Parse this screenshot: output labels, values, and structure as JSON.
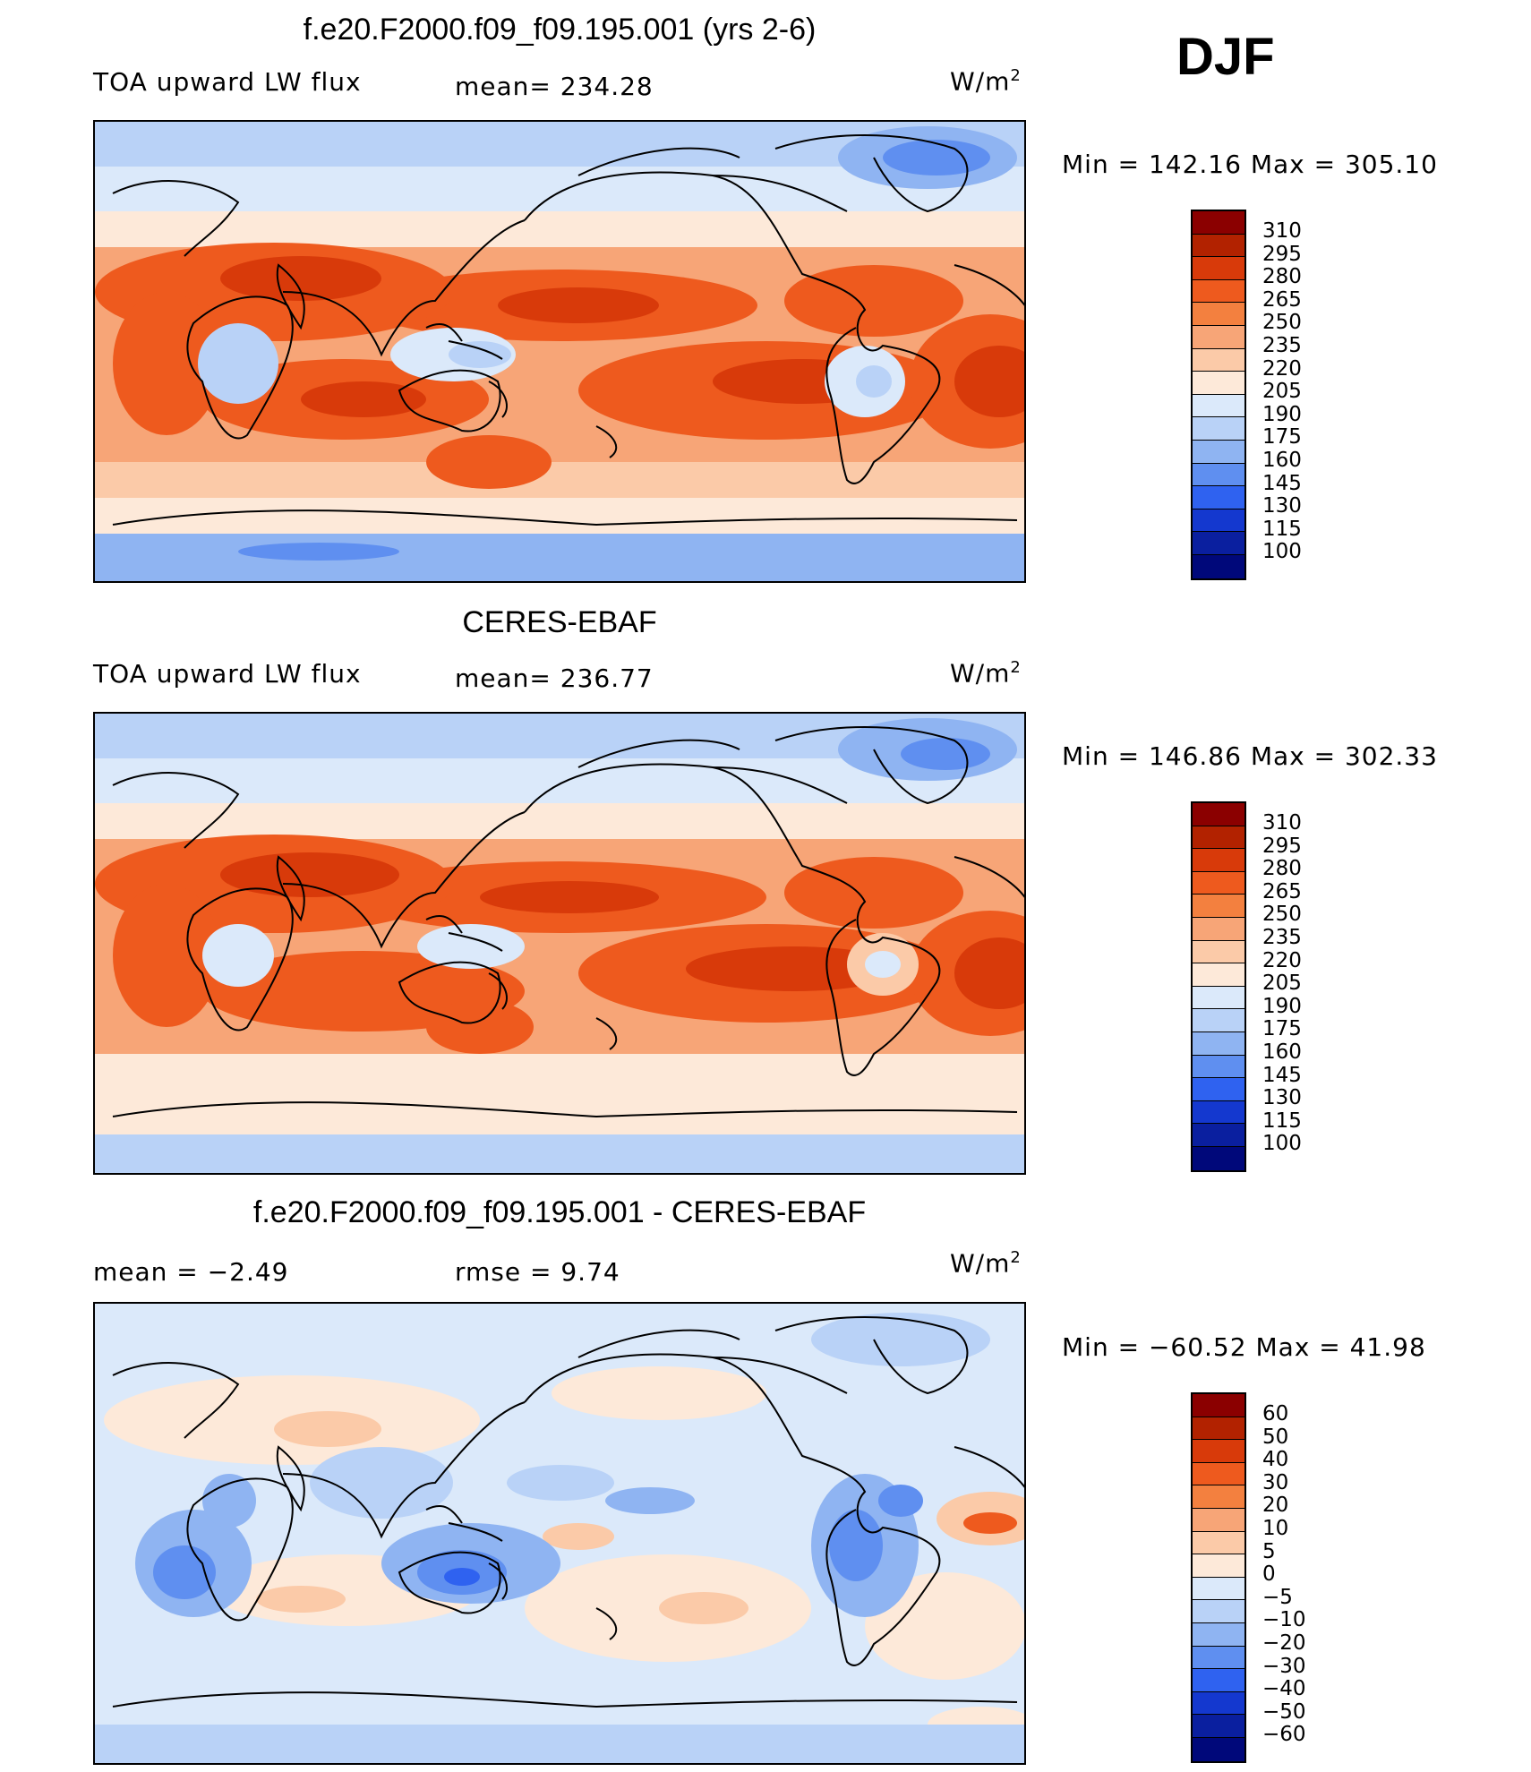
{
  "season": "DJF",
  "units": "W/m",
  "units_sup": "2",
  "panels": [
    {
      "title": "f.e20.F2000.f09_f09.195.001 (yrs 2-6)",
      "var_label": "TOA upward LW flux",
      "stat_label": "mean=  234.28",
      "minmax": "Min  =  142.16  Max  =  305.10"
    },
    {
      "title": "CERES-EBAF",
      "var_label": "TOA upward LW flux",
      "stat_label": "mean=  236.77",
      "minmax": "Min  =  146.86  Max  =  302.33"
    },
    {
      "title": "f.e20.F2000.f09_f09.195.001 - CERES-EBAF",
      "var_label": "mean  =     −2.49",
      "stat_label": "rmse  =      9.74",
      "minmax": "Min  =  −60.52  Max  =    41.98"
    }
  ],
  "colorbars": {
    "abs": {
      "labels": [
        "310",
        "295",
        "280",
        "265",
        "250",
        "235",
        "220",
        "205",
        "190",
        "175",
        "160",
        "145",
        "130",
        "115",
        "100"
      ],
      "colors": [
        "#8b0000",
        "#b22200",
        "#d83a0a",
        "#ee5a1e",
        "#f3803f",
        "#f7a577",
        "#fbcaa8",
        "#fde9d9",
        "#dbe9fa",
        "#b9d2f7",
        "#8fb4f2",
        "#5f8ff0",
        "#2f62f0",
        "#1438cf",
        "#0a1f9f",
        "#00087a"
      ]
    },
    "diff": {
      "labels": [
        "60",
        "50",
        "40",
        "30",
        "20",
        "10",
        "5",
        "0",
        "−5",
        "−10",
        "−20",
        "−30",
        "−40",
        "−50",
        "−60"
      ],
      "colors": [
        "#8b0000",
        "#b22200",
        "#d83a0a",
        "#ee5a1e",
        "#f3803f",
        "#f7a577",
        "#fbcaa8",
        "#fde9d9",
        "#dbe9fa",
        "#b9d2f7",
        "#8fb4f2",
        "#5f8ff0",
        "#2f62f0",
        "#1438cf",
        "#0a1f9f",
        "#00087a"
      ]
    }
  },
  "chart_data": [
    {
      "type": "heatmap",
      "title": "f.e20.F2000.f09_f09.195.001 (yrs 2-6)",
      "variable": "TOA upward LW flux",
      "units": "W/m2",
      "mean": 234.28,
      "min": 142.16,
      "max": 305.1,
      "levels": [
        100,
        115,
        130,
        145,
        160,
        175,
        190,
        205,
        220,
        235,
        250,
        265,
        280,
        295,
        310
      ]
    },
    {
      "type": "heatmap",
      "title": "CERES-EBAF",
      "variable": "TOA upward LW flux",
      "units": "W/m2",
      "mean": 236.77,
      "min": 146.86,
      "max": 302.33,
      "levels": [
        100,
        115,
        130,
        145,
        160,
        175,
        190,
        205,
        220,
        235,
        250,
        265,
        280,
        295,
        310
      ]
    },
    {
      "type": "heatmap",
      "title": "f.e20.F2000.f09_f09.195.001 - CERES-EBAF",
      "units": "W/m2",
      "mean": -2.49,
      "rmse": 9.74,
      "min": -60.52,
      "max": 41.98,
      "levels": [
        -60,
        -50,
        -40,
        -30,
        -20,
        -10,
        -5,
        0,
        5,
        10,
        20,
        30,
        40,
        50,
        60
      ]
    }
  ]
}
